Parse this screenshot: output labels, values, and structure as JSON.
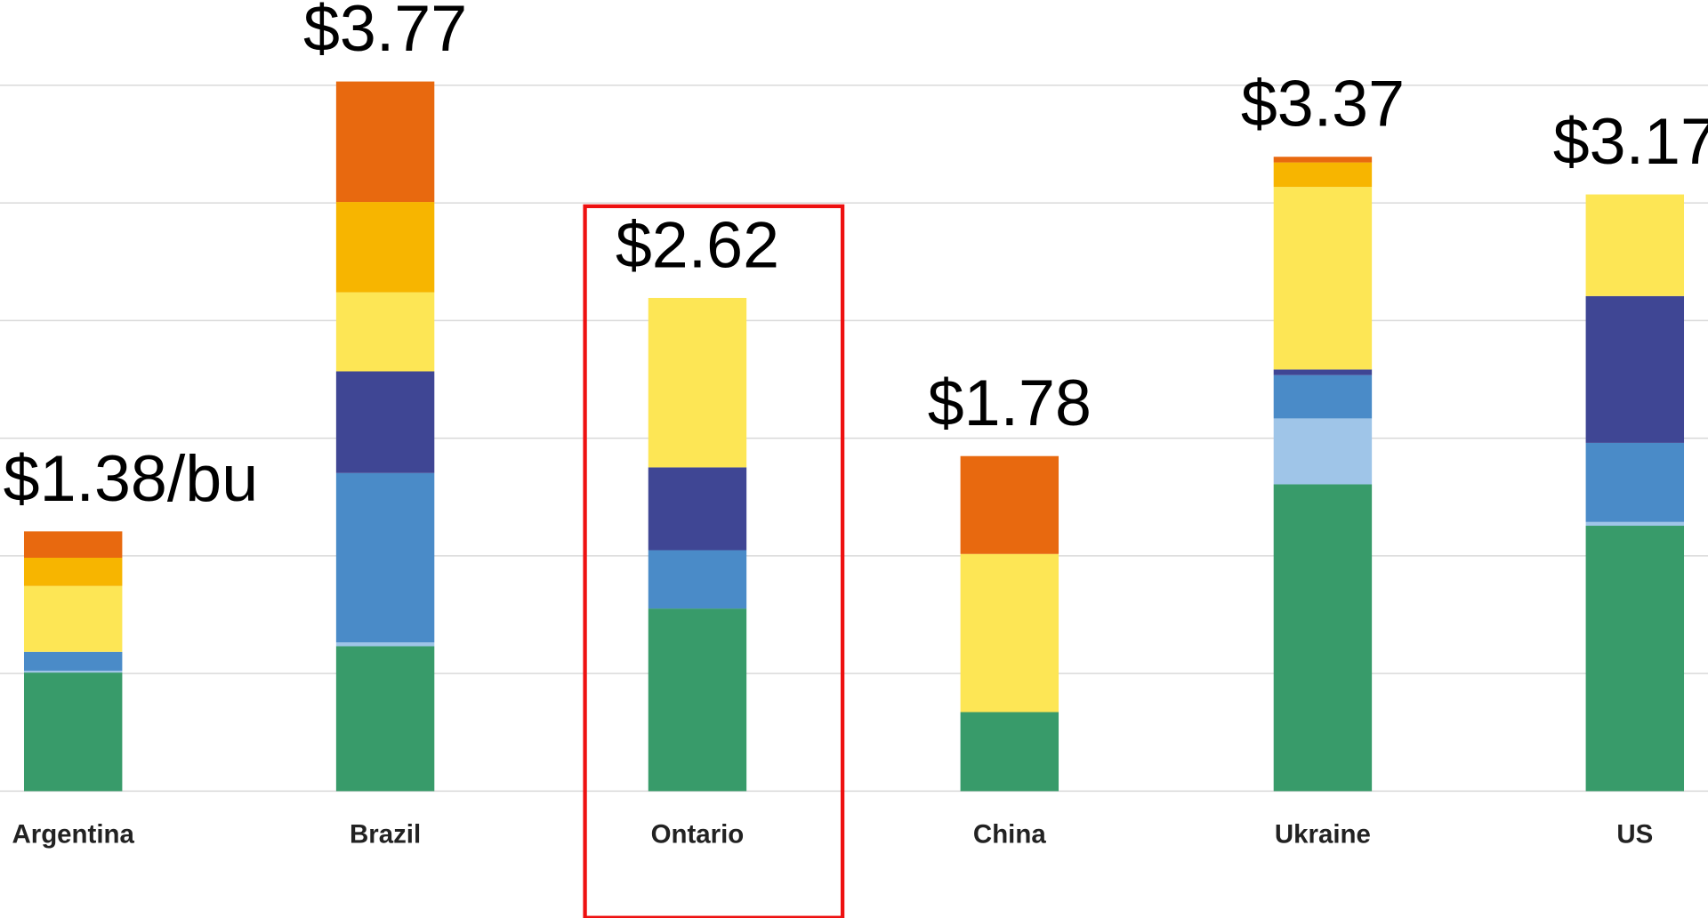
{
  "chart_data": {
    "type": "stacked_bar",
    "categories": [
      "Argentina",
      "Brazil",
      "Ontario",
      "China",
      "Ukraine",
      "US"
    ],
    "series": [
      {
        "color": "#389b6a",
        "values": [
          0.63,
          0.77,
          0.97,
          0.42,
          1.63,
          1.41
        ]
      },
      {
        "color": "#9fc5e8",
        "values": [
          0.01,
          0.02,
          0,
          0,
          0.35,
          0.02
        ]
      },
      {
        "color": "#4a8bc8",
        "values": [
          0.1,
          0.9,
          0.31,
          0,
          0.23,
          0.42
        ]
      },
      {
        "color": "#3f4694",
        "values": [
          0,
          0.54,
          0.44,
          0,
          0.03,
          0.78
        ]
      },
      {
        "color": "#fde655",
        "values": [
          0.35,
          0.42,
          0.9,
          0.84,
          0.97,
          0.54
        ]
      },
      {
        "color": "#f7b500",
        "values": [
          0.15,
          0.48,
          0,
          0,
          0.13,
          0
        ]
      },
      {
        "color": "#e8690f",
        "values": [
          0.14,
          0.64,
          0,
          0.52,
          0.03,
          0
        ]
      }
    ],
    "totals": [
      1.38,
      3.77,
      2.62,
      1.78,
      3.37,
      3.17
    ],
    "value_labels": [
      "$1.38/bu",
      "$3.77",
      "$2.62",
      "$1.78",
      "$3.37",
      "$3.17"
    ],
    "ylim": [
      0,
      4.2
    ],
    "yticks": [
      0,
      0.625,
      1.25,
      1.875,
      2.5,
      3.125,
      3.75
    ],
    "grid": true
  }
}
